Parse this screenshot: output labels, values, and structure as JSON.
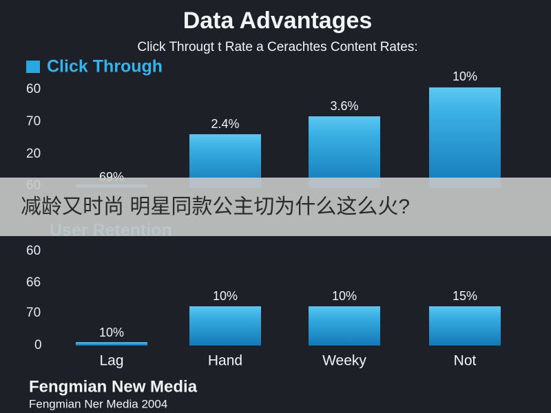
{
  "header": {
    "title": "Data Advantages",
    "subtitle": "Click Througt t Rate a Cerachtes Content Rates:"
  },
  "panels": [
    {
      "legend": "Click Through",
      "axis_labels": [
        "60",
        "70",
        "20",
        "60"
      ],
      "bar_labels": [
        "69%",
        "2.4%",
        "3.6%",
        "10%"
      ]
    },
    {
      "legend": "User Retention",
      "axis_labels": [
        "60",
        "66",
        "70",
        "0"
      ],
      "bar_labels": [
        "10%",
        "10%",
        "10%",
        "15%"
      ]
    }
  ],
  "categories": [
    "Lag",
    "Hand",
    "Weeky",
    "Not"
  ],
  "banner": "减龄又时尚 明星同款公主切为什么这么火?",
  "footer": {
    "brand": "Fengmian New Media",
    "note": "Fengmian Ner Media 2004"
  }
}
